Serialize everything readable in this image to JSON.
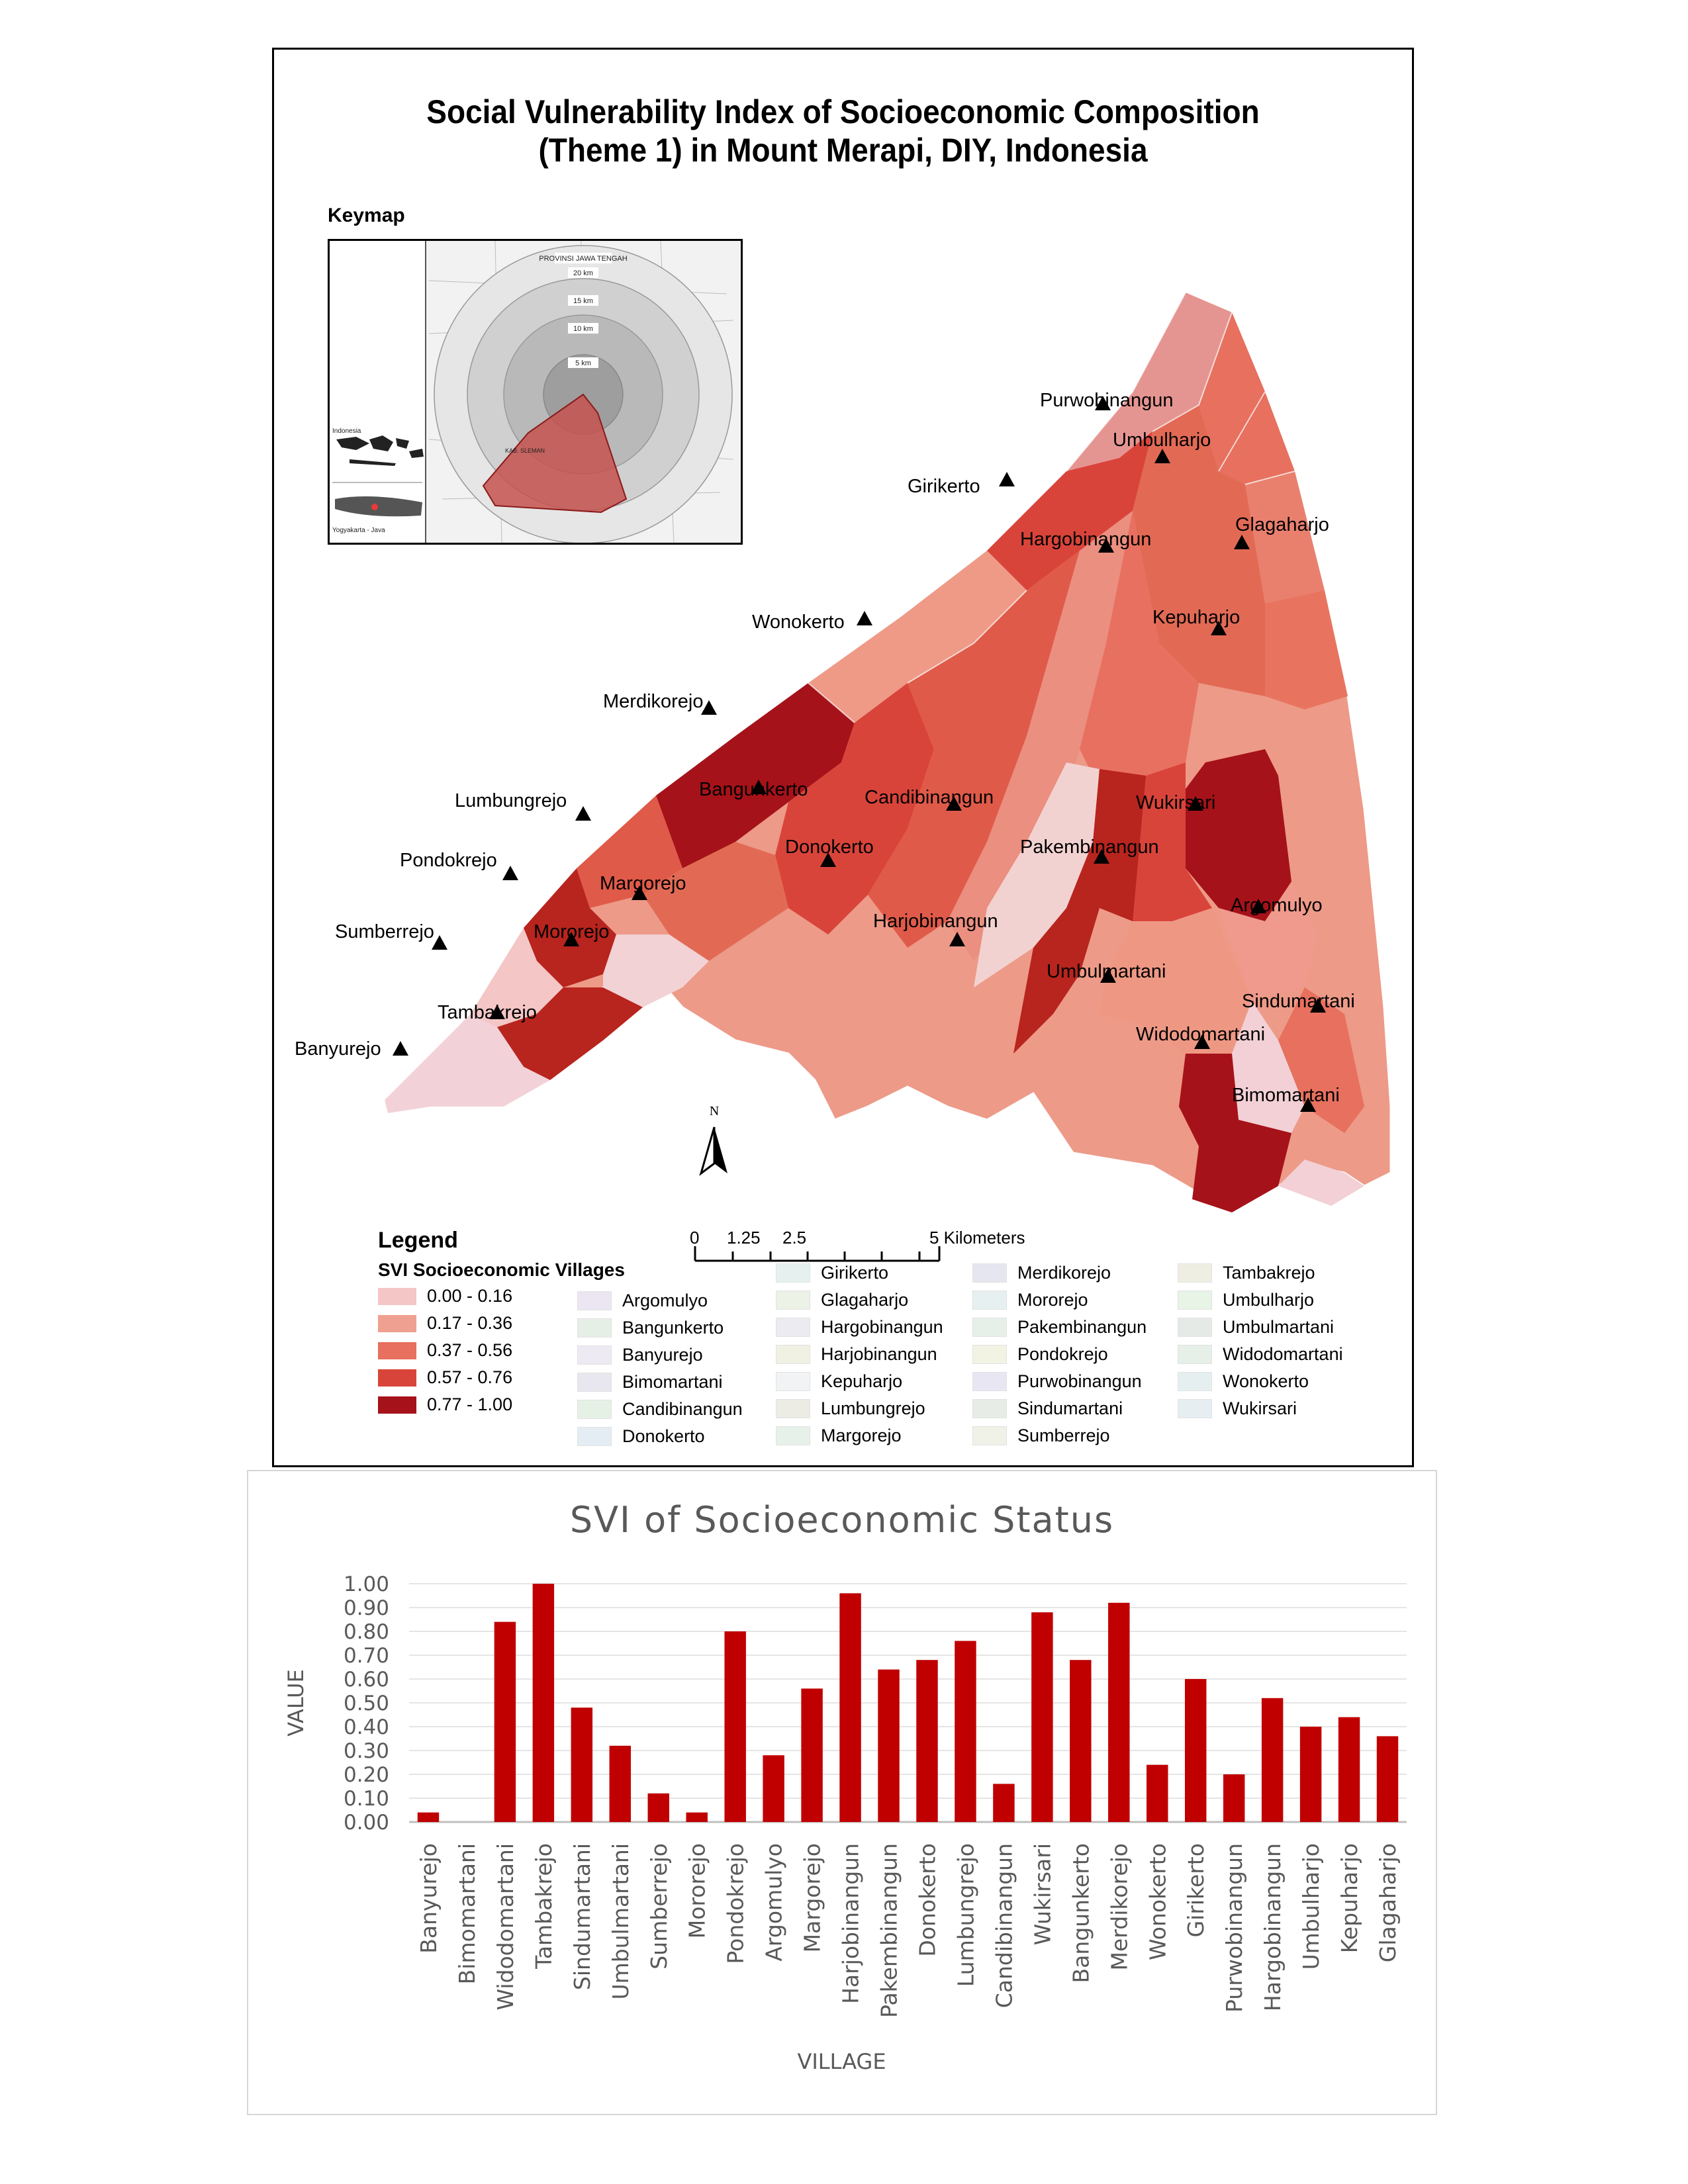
{
  "map": {
    "title_line1": "Social Vulnerability Index of Socioeconomic Composition",
    "title_line2": "(Theme 1) in Mount Merapi, DIY, Indonesia",
    "keymap_label": "Keymap",
    "keymap": {
      "labels": [
        "PROVINSI JAWA TENGAH",
        "20 km",
        "15 km",
        "10 km",
        "5 km",
        "Indonesia",
        "Yogyakarta - Java",
        "KAB. SLEMAN"
      ]
    },
    "north_label": "N",
    "scalebar": {
      "tick_labels": [
        "0",
        "1.25",
        "2.5",
        "5 Kilometers"
      ]
    },
    "village_labels": [
      "Purwobinangun",
      "Umbulharjo",
      "Girikerto",
      "Glagaharjo",
      "Hargobinangun",
      "Wonokerto",
      "Kepuharjo",
      "Merdikorejo",
      "Bangunkerto",
      "Candibinangun",
      "Wukirsari",
      "Lumbungrejo",
      "Pondokrejo",
      "Donokerto",
      "Pakembinangun",
      "Margorejo",
      "Argomulyo",
      "Harjobinangun",
      "Sumberrejo",
      "Mororejo",
      "Umbulmartani",
      "Sindumartani",
      "Tambakrejo",
      "Widodomartani",
      "Banyurejo",
      "Bimomartani"
    ],
    "legend": {
      "title": "Legend",
      "subtitle": "SVI Socioeconomic Villages",
      "classes": [
        {
          "label": "0.00 - 0.16",
          "color": "#f4c6c6"
        },
        {
          "label": "0.17 - 0.36",
          "color": "#f0a090"
        },
        {
          "label": "0.37 - 0.56",
          "color": "#e7705e"
        },
        {
          "label": "0.57 - 0.76",
          "color": "#d9443a"
        },
        {
          "label": "0.77 - 1.00",
          "color": "#a61219"
        }
      ],
      "village_col1": [
        "Argomulyo",
        "Bangunkerto",
        "Banyurejo",
        "Bimomartani",
        "Candibinangun",
        "Donokerto"
      ],
      "village_col2": [
        "Girikerto",
        "Glagaharjo",
        "Hargobinangun",
        "Harjobinangun",
        "Kepuharjo",
        "Lumbungrejo",
        "Margorejo"
      ],
      "village_col3": [
        "Merdikorejo",
        "Mororejo",
        "Pakembinangun",
        "Pondokrejo",
        "Purwobinangun",
        "Sindumartani",
        "Sumberrejo"
      ],
      "village_col4": [
        "Tambakrejo",
        "Umbulharjo",
        "Umbulmartani",
        "Widodomartani",
        "Wonokerto",
        "Wukirsari"
      ]
    }
  },
  "chart_data": {
    "type": "bar",
    "title": "SVI of Socioeconomic Status",
    "xlabel": "VILLAGE",
    "ylabel": "VALUE",
    "ylim": [
      0,
      1.0
    ],
    "yticks": [
      "0.00",
      "0.10",
      "0.20",
      "0.30",
      "0.40",
      "0.50",
      "0.60",
      "0.70",
      "0.80",
      "0.90",
      "1.00"
    ],
    "grid": true,
    "bar_color": "#c00000",
    "categories": [
      "Banyurejo",
      "Bimomartani",
      "Widodomartani",
      "Tambakrejo",
      "Sindumartani",
      "Umbulmartani",
      "Sumberrejo",
      "Mororejo",
      "Pondokrejo",
      "Argomulyo",
      "Margorejo",
      "Harjobinangun",
      "Pakembinangun",
      "Donokerto",
      "Lumbungrejo",
      "Candibinangun",
      "Wukirsari",
      "Bangunkerto",
      "Merdikorejo",
      "Wonokerto",
      "Girikerto",
      "Purwobinangun",
      "Hargobinangun",
      "Umbulharjo",
      "Kepuharjo",
      "Glagaharjo"
    ],
    "values": [
      0.04,
      0.0,
      0.84,
      1.0,
      0.48,
      0.32,
      0.12,
      0.04,
      0.8,
      0.28,
      0.56,
      0.96,
      0.64,
      0.68,
      0.76,
      0.16,
      0.88,
      0.68,
      0.92,
      0.24,
      0.6,
      0.2,
      0.52,
      0.4,
      0.44,
      0.36
    ]
  }
}
